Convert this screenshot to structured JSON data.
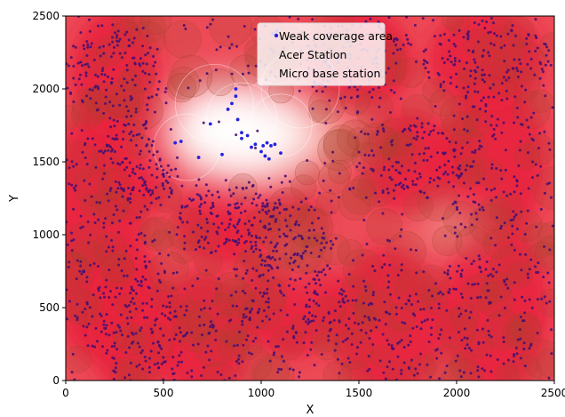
{
  "chart_data": {
    "type": "scatter",
    "title": "",
    "xlabel": "X",
    "ylabel": "Y",
    "xlim": [
      0,
      2500
    ],
    "ylim": [
      0,
      2500
    ],
    "x_ticks": [
      0,
      500,
      1000,
      1500,
      2000,
      2500
    ],
    "y_ticks": [
      0,
      500,
      1000,
      1500,
      2000,
      2500
    ],
    "grid": false,
    "legend": {
      "placement": "top-center",
      "entries": [
        "Weak coverage area",
        "Acer Station",
        "Micro base station"
      ]
    },
    "colors": {
      "weak_coverage_point": "#2424e0",
      "user_point": "#4a1070",
      "coverage_strong": "#e8203c",
      "coverage_weak": "#ffffff",
      "station_circle": "#a8402e"
    },
    "series": [
      {
        "name": "Weak coverage area",
        "points": [
          [
            560,
            1630
          ],
          [
            590,
            1640
          ],
          [
            680,
            1530
          ],
          [
            740,
            1760
          ],
          [
            800,
            1550
          ],
          [
            830,
            1860
          ],
          [
            850,
            1900
          ],
          [
            870,
            1950
          ],
          [
            880,
            1790
          ],
          [
            900,
            1700
          ],
          [
            930,
            1680
          ],
          [
            950,
            1600
          ],
          [
            970,
            1620
          ],
          [
            1000,
            1570
          ],
          [
            1010,
            1610
          ],
          [
            1020,
            1540
          ],
          [
            1030,
            1630
          ],
          [
            1050,
            1610
          ],
          [
            1070,
            1620
          ],
          [
            1100,
            1560
          ],
          [
            870,
            2000
          ],
          [
            1060,
            2380
          ],
          [
            1080,
            2400
          ],
          [
            900,
            1660
          ],
          [
            1040,
            1520
          ]
        ]
      },
      {
        "name": "Acer Station",
        "points": []
      },
      {
        "name": "Micro base station",
        "points": []
      }
    ],
    "weak_region": [
      [
        440,
        1640
      ],
      [
        520,
        1820
      ],
      [
        640,
        1960
      ],
      [
        800,
        2050
      ],
      [
        950,
        2020
      ],
      [
        1100,
        1940
      ],
      [
        1280,
        1900
      ],
      [
        1420,
        1820
      ],
      [
        1550,
        1700
      ],
      [
        1500,
        1560
      ],
      [
        1380,
        1480
      ],
      [
        1230,
        1430
      ],
      [
        1080,
        1360
      ],
      [
        920,
        1330
      ],
      [
        760,
        1370
      ],
      [
        620,
        1460
      ],
      [
        500,
        1540
      ]
    ],
    "weak_region_secondary": [
      [
        1780,
        1060
      ],
      [
        1900,
        1130
      ],
      [
        2020,
        1170
      ],
      [
        2140,
        1120
      ],
      [
        2160,
        1010
      ],
      [
        2050,
        950
      ],
      [
        1900,
        940
      ],
      [
        1800,
        990
      ]
    ],
    "dense_zones": [
      [
        150,
        1000,
        260,
        650
      ],
      [
        330,
        400,
        220,
        380
      ],
      [
        700,
        300,
        250,
        330
      ],
      [
        1150,
        550,
        260,
        300
      ],
      [
        1650,
        400,
        300,
        380
      ],
      [
        2200,
        500,
        280,
        450
      ],
      [
        2200,
        1500,
        260,
        420
      ],
      [
        1750,
        1500,
        260,
        260
      ],
      [
        250,
        2100,
        230,
        330
      ],
      [
        1500,
        2200,
        280,
        260
      ],
      [
        2150,
        2200,
        300,
        260
      ],
      [
        400,
        1500,
        200,
        260
      ],
      [
        1100,
        1000,
        260,
        230
      ],
      [
        800,
        1100,
        240,
        230
      ]
    ]
  }
}
